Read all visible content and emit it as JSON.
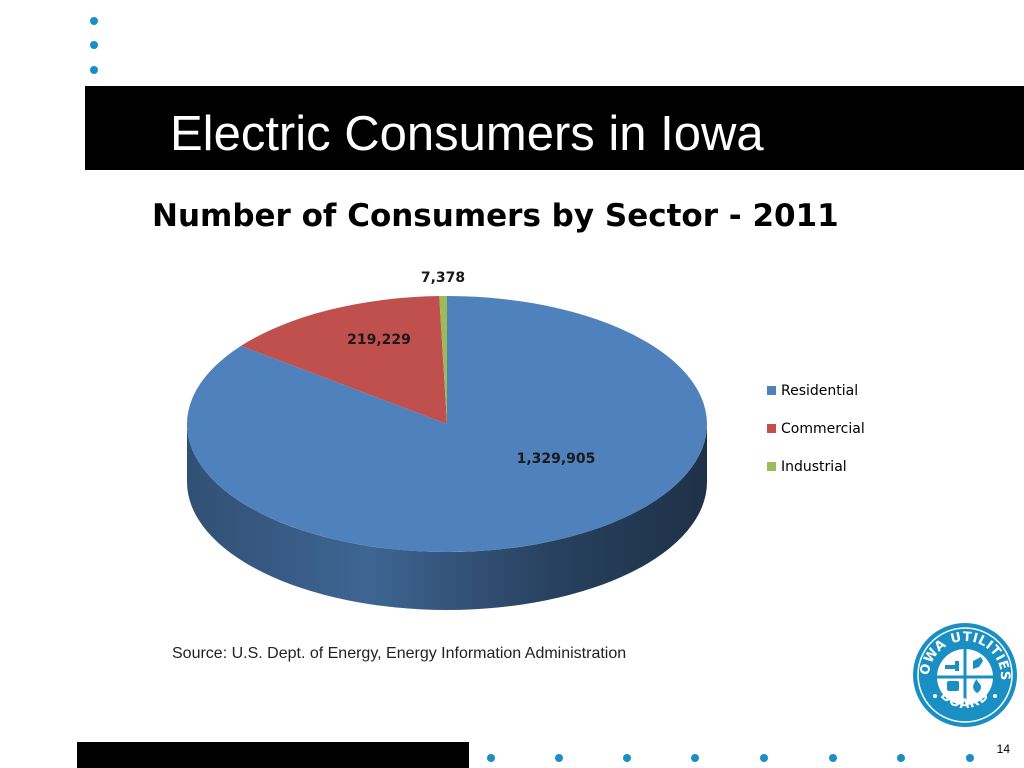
{
  "slide": {
    "title": "Electric Consumers in Iowa",
    "source": "Source:  U.S. Dept. of Energy, Energy Information Administration",
    "page_number": "14",
    "accent_dot_color": "#1a8fc4"
  },
  "logo": {
    "text_top": "IOWA UTILITIES",
    "text_bottom": "BOARD",
    "color": "#1a8fc4"
  },
  "chart_data": {
    "type": "pie",
    "title": "Number of Consumers by Sector - 2011",
    "categories": [
      "Residential",
      "Commercial",
      "Industrial"
    ],
    "values": [
      1329905,
      219229,
      7378
    ],
    "value_labels": [
      "1,329,905",
      "219,229",
      "7,378"
    ],
    "colors": [
      "#4f81bd",
      "#c0504d",
      "#9bbb59"
    ],
    "legend_position": "right",
    "three_d": true
  }
}
